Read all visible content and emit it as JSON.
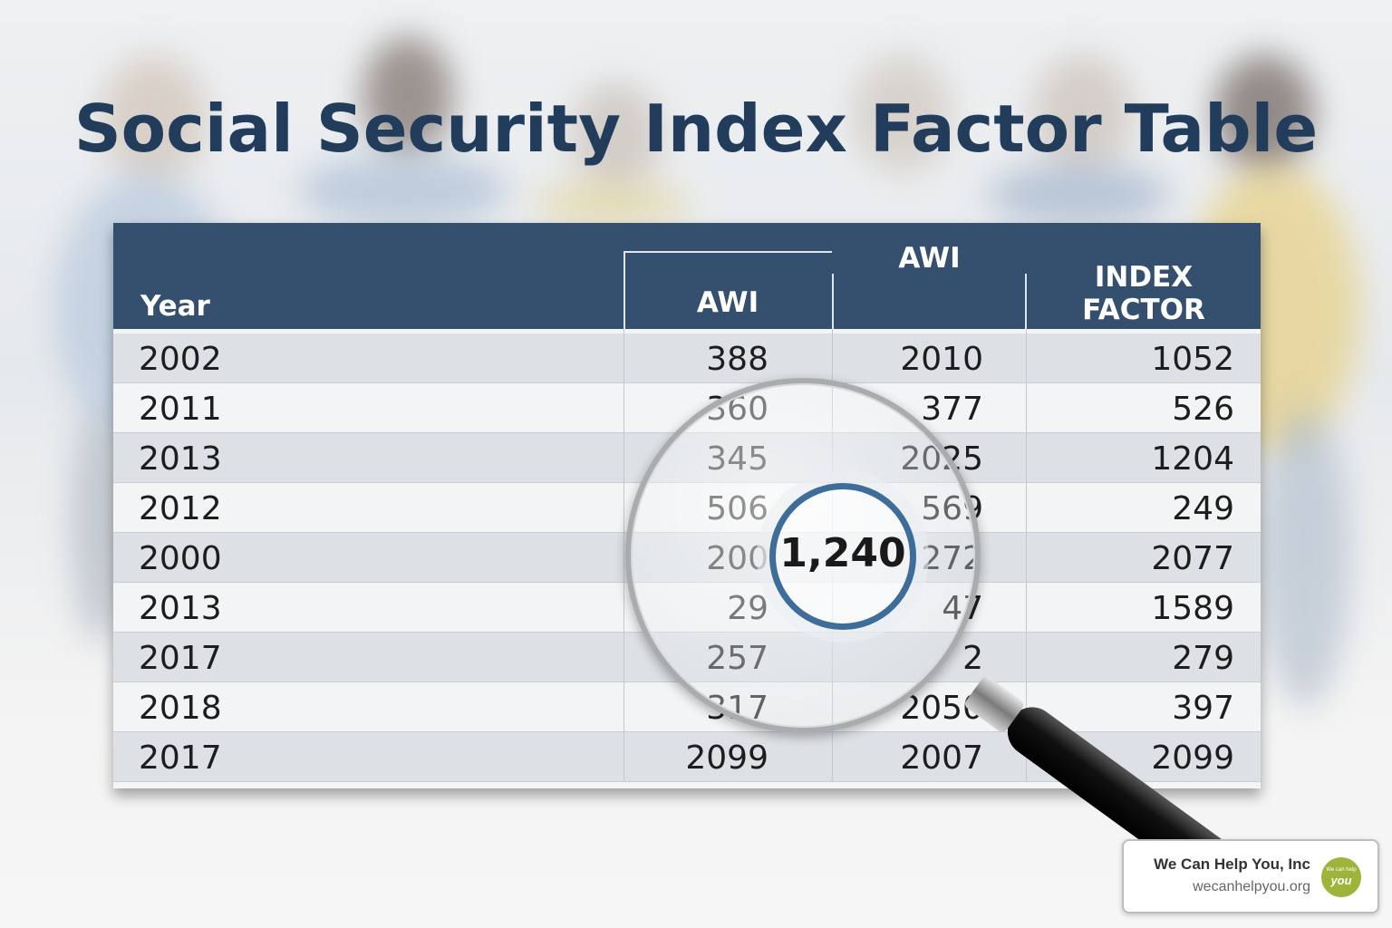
{
  "title": "Social Security Index Factor Table",
  "table": {
    "headers": {
      "year": "Year",
      "awi_1": "AWI",
      "awi_2": "AWI",
      "index_factor_line1": "INDEX",
      "index_factor_line2": "FACTOR"
    },
    "rows": [
      [
        "2002",
        "388",
        "2010",
        "1052"
      ],
      [
        "2011",
        "360",
        "377",
        "526"
      ],
      [
        "2013",
        "345",
        "2025",
        "1204"
      ],
      [
        "2012",
        "506",
        "569",
        "249"
      ],
      [
        "2000",
        "200",
        "272",
        "2077"
      ],
      [
        "2013",
        "29",
        "47",
        "1589"
      ],
      [
        "2017",
        "257",
        "2",
        "279"
      ],
      [
        "2018",
        "317",
        "2050",
        "397"
      ],
      [
        "2017",
        "2099",
        "2007",
        "2099"
      ]
    ],
    "header_color": "#34506e"
  },
  "magnifier": {
    "value": "1,240",
    "ring_color": "#3f6d9a"
  },
  "badge": {
    "name": "We Can Help You, Inc",
    "url": "wecanhelpyou.org",
    "logo_text_small": "We can help",
    "logo_text_big": "you",
    "logo_color": "#9cb43a"
  }
}
